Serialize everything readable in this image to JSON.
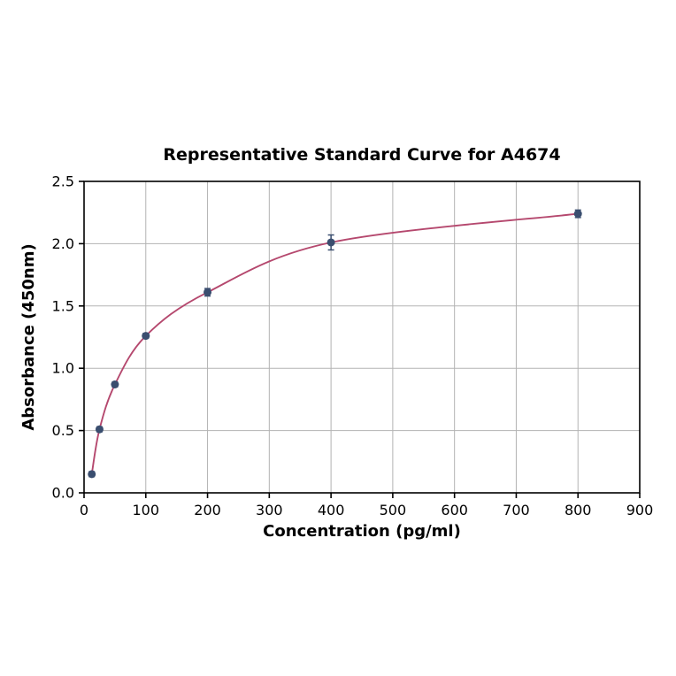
{
  "chart_data": {
    "type": "scatter",
    "title": "Representative Standard Curve for A4674",
    "xlabel": "Concentration (pg/ml)",
    "ylabel": "Absorbance (450nm)",
    "xlim": [
      0,
      900
    ],
    "ylim": [
      0,
      2.5
    ],
    "x_ticks": [
      0,
      100,
      200,
      300,
      400,
      500,
      600,
      700,
      800,
      900
    ],
    "x_tick_labels": [
      "0",
      "100",
      "200",
      "300",
      "400",
      "500",
      "600",
      "700",
      "800",
      "900"
    ],
    "y_ticks": [
      0,
      0.5,
      1.0,
      1.5,
      2.0,
      2.5
    ],
    "y_tick_labels": [
      "0.0",
      "0.5",
      "1.0",
      "1.5",
      "2.0",
      "2.5"
    ],
    "grid": true,
    "series": [
      {
        "name": "standard-curve",
        "x": [
          12.5,
          25,
          50,
          100,
          200,
          400,
          800
        ],
        "y": [
          0.15,
          0.51,
          0.87,
          1.26,
          1.61,
          2.01,
          2.24
        ],
        "y_err": [
          0.02,
          0.02,
          0.02,
          0.02,
          0.03,
          0.06,
          0.03
        ],
        "marker": "circle",
        "line": "smooth"
      }
    ],
    "colors": {
      "curve": "#b5486e",
      "marker": "#3a4e6f",
      "grid": "#b3b3b3",
      "axis": "#000000",
      "background": "#ffffff"
    }
  }
}
